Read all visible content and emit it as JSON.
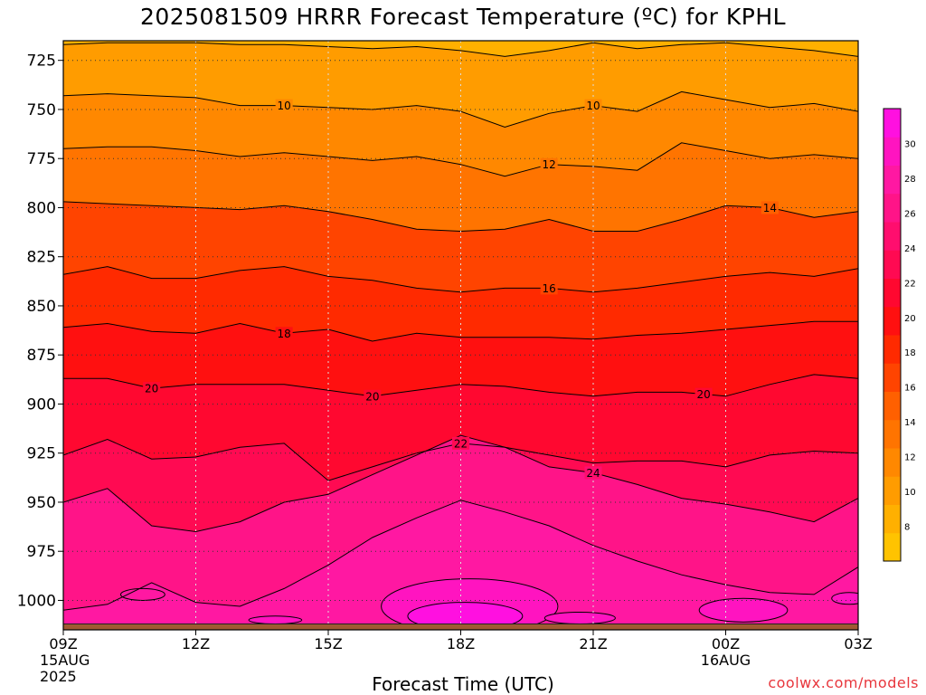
{
  "chart_data": {
    "type": "heatmap",
    "title": "2025081509 HRRR Forecast Temperature (ºC) for KPHL",
    "xlabel": "Forecast Time (UTC)",
    "ylabel": "",
    "credit": "coolwx.com/models",
    "x_ticks": [
      {
        "hour": 0,
        "lines": [
          "09Z",
          "15AUG",
          "2025"
        ]
      },
      {
        "hour": 3,
        "lines": [
          "12Z"
        ]
      },
      {
        "hour": 6,
        "lines": [
          "15Z"
        ]
      },
      {
        "hour": 9,
        "lines": [
          "18Z"
        ]
      },
      {
        "hour": 12,
        "lines": [
          "21Z"
        ]
      },
      {
        "hour": 15,
        "lines": [
          "00Z",
          "16AUG"
        ]
      },
      {
        "hour": 18,
        "lines": [
          "03Z"
        ]
      }
    ],
    "y_ticks": [
      725,
      750,
      775,
      800,
      825,
      850,
      875,
      900,
      925,
      950,
      975,
      1000
    ],
    "y_axis": "pressure (hPa), inverted",
    "xlim_hours": [
      0,
      18
    ],
    "ylim_hpa": [
      715,
      1015
    ],
    "surface_pressure_hpa": 1012,
    "grid": "dotted",
    "colorbar": {
      "ticks": [
        8,
        10,
        12,
        14,
        16,
        18,
        20,
        22,
        24,
        26,
        28,
        30
      ],
      "range": [
        6,
        32
      ],
      "colors": [
        "#ffc300",
        "#ffb000",
        "#ff9c00",
        "#ff8800",
        "#ff7400",
        "#ff6000",
        "#ff4400",
        "#ff2a00",
        "#ff1010",
        "#ff0830",
        "#ff0a52",
        "#ff0e6e",
        "#ff1488",
        "#ff18a2",
        "#ff14c0",
        "#ff10e0"
      ]
    },
    "times_hours": [
      0,
      1,
      2,
      3,
      4,
      5,
      6,
      7,
      8,
      9,
      10,
      11,
      12,
      13,
      14,
      15,
      16,
      17,
      18
    ],
    "isotherms": [
      {
        "temp": 8,
        "p": [
          717,
          716,
          716,
          716,
          717,
          717,
          718,
          719,
          718,
          720,
          723,
          720,
          716,
          719,
          717,
          716,
          718,
          720,
          723
        ]
      },
      {
        "temp": 10,
        "p": [
          743,
          742,
          743,
          744,
          748,
          748,
          749,
          750,
          748,
          751,
          759,
          752,
          748,
          751,
          741,
          745,
          749,
          747,
          751
        ]
      },
      {
        "temp": 12,
        "p": [
          770,
          769,
          769,
          771,
          774,
          772,
          774,
          776,
          774,
          778,
          784,
          778,
          779,
          781,
          767,
          771,
          775,
          773,
          775
        ]
      },
      {
        "temp": 14,
        "p": [
          797,
          798,
          799,
          800,
          801,
          799,
          802,
          806,
          811,
          812,
          811,
          806,
          812,
          812,
          806,
          799,
          800,
          805,
          802
        ]
      },
      {
        "temp": 16,
        "p": [
          834,
          830,
          836,
          836,
          832,
          830,
          835,
          837,
          841,
          843,
          841,
          841,
          843,
          841,
          838,
          835,
          833,
          835,
          831
        ]
      },
      {
        "temp": 18,
        "p": [
          861,
          859,
          863,
          864,
          859,
          864,
          862,
          868,
          864,
          866,
          866,
          866,
          867,
          865,
          864,
          862,
          860,
          858,
          858
        ]
      },
      {
        "temp": 20,
        "p": [
          887,
          887,
          892,
          890,
          890,
          890,
          893,
          896,
          893,
          890,
          891,
          894,
          896,
          894,
          894,
          896,
          890,
          885,
          887
        ]
      },
      {
        "temp": 22,
        "p": [
          926,
          918,
          928,
          927,
          922,
          920,
          939,
          932,
          925,
          920,
          922,
          926,
          930,
          929,
          929,
          932,
          926,
          924,
          925
        ]
      },
      {
        "temp": 24,
        "p": [
          950,
          943,
          962,
          965,
          960,
          950,
          946,
          936,
          926,
          916,
          922,
          932,
          935,
          941,
          948,
          951,
          955,
          960,
          948
        ]
      },
      {
        "temp": 26,
        "p": [
          1005,
          1002,
          991,
          1001,
          1003,
          994,
          982,
          968,
          958,
          949,
          955,
          962,
          972,
          980,
          987,
          992,
          996,
          997,
          983
        ]
      }
    ],
    "contour_labels": [
      {
        "temp": 10,
        "hour": 5.0
      },
      {
        "temp": 10,
        "hour": 12.0
      },
      {
        "temp": 12,
        "hour": 11.0
      },
      {
        "temp": 14,
        "hour": 16.0
      },
      {
        "temp": 16,
        "hour": 11.0
      },
      {
        "temp": 18,
        "hour": 5.0
      },
      {
        "temp": 20,
        "hour": 2.0
      },
      {
        "temp": 20,
        "hour": 7.0
      },
      {
        "temp": 20,
        "hour": 14.5
      },
      {
        "temp": 22,
        "hour": 9.0
      },
      {
        "temp": 24,
        "hour": 12.0
      }
    ],
    "warm_pockets": [
      {
        "temp": 28,
        "hour": 9.2,
        "p": 1003,
        "rh": 2.0,
        "rp": 14
      },
      {
        "temp": 30,
        "hour": 9.1,
        "p": 1008,
        "rh": 1.3,
        "rp": 7
      },
      {
        "temp": 26,
        "hour": 1.8,
        "p": 997,
        "rh": 0.5,
        "rp": 3
      },
      {
        "temp": 28,
        "hour": 15.4,
        "p": 1005,
        "rh": 1.0,
        "rp": 6
      },
      {
        "temp": 28,
        "hour": 11.7,
        "p": 1009,
        "rh": 0.8,
        "rp": 3
      },
      {
        "temp": 28,
        "hour": 4.8,
        "p": 1010,
        "rh": 0.6,
        "rp": 2
      },
      {
        "temp": 28,
        "hour": 17.8,
        "p": 999,
        "rh": 0.4,
        "rp": 3
      }
    ]
  }
}
